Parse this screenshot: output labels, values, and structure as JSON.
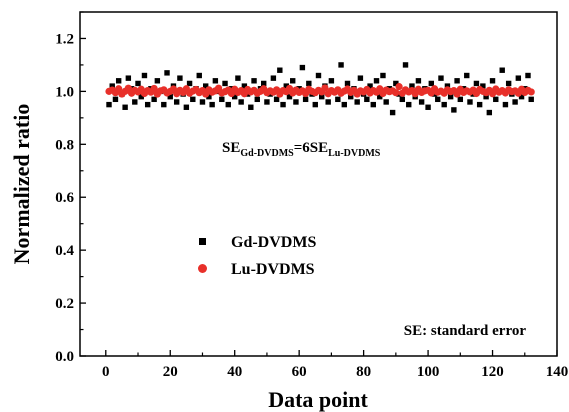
{
  "chart_data": {
    "type": "scatter",
    "title": "",
    "xlabel": "Data point",
    "ylabel": "Normalized ratio",
    "xlim": [
      -8,
      140
    ],
    "ylim": [
      0.0,
      1.3
    ],
    "xticks": [
      0,
      20,
      40,
      60,
      80,
      100,
      120,
      140
    ],
    "xtick_labels": [
      "0",
      "20",
      "40",
      "60",
      "80",
      "100",
      "120",
      "140"
    ],
    "yticks": [
      0.0,
      0.2,
      0.4,
      0.6,
      0.8,
      1.0,
      1.2
    ],
    "ytick_labels": [
      "0.0",
      "0.2",
      "0.4",
      "0.6",
      "0.8",
      "1.0",
      "1.2"
    ],
    "grid": false,
    "legend_position": "lower-left",
    "annotations": {
      "se_relation": {
        "a": "SE",
        "a_sub": "Gd-DVDMS",
        "mid": "=6SE",
        "b_sub": "Lu-DVDMS"
      },
      "se_note": "SE: standard error"
    },
    "series": [
      {
        "name": "Gd-DVDMS",
        "marker": "square",
        "color": "#000000",
        "x": [
          1,
          2,
          3,
          4,
          5,
          6,
          7,
          8,
          9,
          10,
          11,
          12,
          13,
          14,
          15,
          16,
          17,
          18,
          19,
          20,
          21,
          22,
          23,
          24,
          25,
          26,
          27,
          28,
          29,
          30,
          31,
          32,
          33,
          34,
          35,
          36,
          37,
          38,
          39,
          40,
          41,
          42,
          43,
          44,
          45,
          46,
          47,
          48,
          49,
          50,
          51,
          52,
          53,
          54,
          55,
          56,
          57,
          58,
          59,
          60,
          61,
          62,
          63,
          64,
          65,
          66,
          67,
          68,
          69,
          70,
          71,
          72,
          73,
          74,
          75,
          76,
          77,
          78,
          79,
          80,
          81,
          82,
          83,
          84,
          85,
          86,
          87,
          88,
          89,
          90,
          91,
          92,
          93,
          94,
          95,
          96,
          97,
          98,
          99,
          100,
          101,
          102,
          103,
          104,
          105,
          106,
          107,
          108,
          109,
          110,
          111,
          112,
          113,
          114,
          115,
          116,
          117,
          118,
          119,
          120,
          121,
          122,
          123,
          124,
          125,
          126,
          127,
          128,
          129,
          130,
          131,
          132
        ],
        "values": [
          0.95,
          1.02,
          0.97,
          1.04,
          0.99,
          0.94,
          1.05,
          1.01,
          0.96,
          1.03,
          0.98,
          1.06,
          0.95,
          1.01,
          0.97,
          1.04,
          1.0,
          0.95,
          1.07,
          0.98,
          1.02,
          0.96,
          1.05,
          0.99,
          0.94,
          1.03,
          0.97,
          1.01,
          1.06,
          0.96,
          1.02,
          0.98,
          0.95,
          1.04,
          1.0,
          0.97,
          1.03,
          0.95,
          1.01,
          0.98,
          1.05,
          0.96,
          1.02,
          0.99,
          0.94,
          1.04,
          0.97,
          1.01,
          1.03,
          0.96,
          0.99,
          1.05,
          0.97,
          1.08,
          0.95,
          1.02,
          0.98,
          1.04,
          0.96,
          1.01,
          1.09,
          0.97,
          1.03,
          0.99,
          0.95,
          1.06,
          0.98,
          1.02,
          0.96,
          1.04,
          1.0,
          0.97,
          1.1,
          0.95,
          1.03,
          0.98,
          1.01,
          0.96,
          1.05,
          0.99,
          0.97,
          1.02,
          0.95,
          1.04,
          0.98,
          1.06,
          0.96,
          1.01,
          0.92,
          1.03,
          0.99,
          0.97,
          1.1,
          0.95,
          1.02,
          0.98,
          1.04,
          0.96,
          1.01,
          0.94,
          1.03,
          0.99,
          0.97,
          1.05,
          0.95,
          1.02,
          0.98,
          0.93,
          1.04,
          0.97,
          1.01,
          1.06,
          0.96,
          0.99,
          1.03,
          0.95,
          1.02,
          0.98,
          0.92,
          1.04,
          0.97,
          1.0,
          1.08,
          0.95,
          1.03,
          0.99,
          0.96,
          1.05,
          0.98,
          1.01,
          1.06,
          0.97
        ]
      },
      {
        "name": "Lu-DVDMS",
        "marker": "circle",
        "color": "#e8302a",
        "x": [
          1,
          2,
          3,
          4,
          5,
          6,
          7,
          8,
          9,
          10,
          11,
          12,
          13,
          14,
          15,
          16,
          17,
          18,
          19,
          20,
          21,
          22,
          23,
          24,
          25,
          26,
          27,
          28,
          29,
          30,
          31,
          32,
          33,
          34,
          35,
          36,
          37,
          38,
          39,
          40,
          41,
          42,
          43,
          44,
          45,
          46,
          47,
          48,
          49,
          50,
          51,
          52,
          53,
          54,
          55,
          56,
          57,
          58,
          59,
          60,
          61,
          62,
          63,
          64,
          65,
          66,
          67,
          68,
          69,
          70,
          71,
          72,
          73,
          74,
          75,
          76,
          77,
          78,
          79,
          80,
          81,
          82,
          83,
          84,
          85,
          86,
          87,
          88,
          89,
          90,
          91,
          92,
          93,
          94,
          95,
          96,
          97,
          98,
          99,
          100,
          101,
          102,
          103,
          104,
          105,
          106,
          107,
          108,
          109,
          110,
          111,
          112,
          113,
          114,
          115,
          116,
          117,
          118,
          119,
          120,
          121,
          122,
          123,
          124,
          125,
          126,
          127,
          128,
          129,
          130,
          131,
          132
        ],
        "values": [
          1.0,
          1.005,
          0.995,
          1.01,
          0.99,
          1.0,
          1.012,
          0.993,
          1.004,
          0.998,
          1.008,
          0.992,
          1.003,
          0.997,
          1.011,
          0.99,
          1.002,
          1.006,
          0.994,
          1.0,
          1.009,
          0.991,
          1.004,
          0.996,
          1.01,
          0.993,
          1.001,
          1.007,
          0.995,
          1.003,
          0.99,
          1.006,
          0.997,
          1.002,
          1.012,
          0.994,
          0.999,
          1.005,
          0.992,
          1.008,
          0.996,
          1.003,
          0.991,
          1.007,
          0.998,
          1.004,
          0.993,
          1.0,
          1.01,
          0.995,
          1.002,
          0.997,
          1.006,
          0.99,
          1.003,
          0.999,
          1.011,
          0.994,
          1.005,
          0.996,
          1.002,
          0.992,
          1.008,
          1.0,
          0.995,
          1.004,
          0.998,
          1.013,
          0.991,
          1.003,
          0.997,
          1.006,
          0.993,
          1.001,
          1.009,
          0.996,
          1.004,
          0.99,
          1.002,
          0.998,
          1.007,
          0.994,
          1.003,
          0.997,
          1.01,
          0.992,
          1.005,
          0.999,
          1.002,
          0.995,
          1.018,
          0.993,
          1.006,
          0.998,
          1.003,
          0.991,
          1.008,
          0.996,
          1.002,
          1.004,
          0.994,
          1.01,
          0.997,
          1.001,
          0.993,
          1.006,
          0.999,
          1.003,
          0.99,
          1.008,
          0.996,
          1.002,
          0.998,
          1.005,
          0.992,
          1.007,
          1.0,
          0.995,
          1.004,
          0.991,
          1.009,
          0.997,
          1.003,
          0.994,
          1.006,
          0.999,
          1.002,
          0.993,
          1.008,
          0.996,
          1.004,
          0.998
        ]
      }
    ]
  }
}
